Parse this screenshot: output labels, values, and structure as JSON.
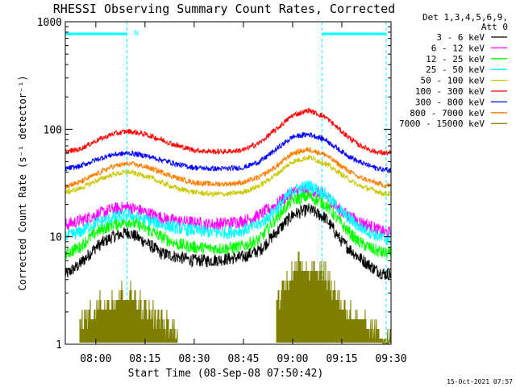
{
  "chart_data": {
    "type": "line",
    "title": "RHESSI Observing Summary Count Rates, Corrected",
    "xlabel": "Start Time (08-Sep-08 07:50:42)",
    "ylabel": "Corrected Count Rate (s⁻¹ detector⁻¹)",
    "yscale": "log",
    "ylim": [
      1,
      1000
    ],
    "xlim": [
      "07:50:42",
      "09:30:00"
    ],
    "x_ticks": [
      "08:00",
      "08:15",
      "08:30",
      "08:45",
      "09:00",
      "09:15",
      "09:30"
    ],
    "y_ticks": [
      "1",
      "10",
      "100",
      "1000"
    ],
    "grid": false,
    "legend_position": "right",
    "legend_header": [
      "Det 1,3,4,5,6,9,",
      "Att 0"
    ],
    "timestamp": "15-Oct-2021 07:57",
    "night_marker": "N",
    "annotation_lines": [
      "07:50:42",
      "08:09:30",
      "09:09:00",
      "09:28:30"
    ],
    "marker_bars": [
      [
        "07:50:42",
        "08:09:30"
      ],
      [
        "09:09:00",
        "09:28:30"
      ]
    ],
    "x": [
      "07:51",
      "07:55",
      "08:00",
      "08:05",
      "08:10",
      "08:15",
      "08:20",
      "08:25",
      "08:30",
      "08:35",
      "08:40",
      "08:45",
      "08:50",
      "08:55",
      "09:00",
      "09:05",
      "09:10",
      "09:15",
      "09:20",
      "09:25",
      "09:28"
    ],
    "series": [
      {
        "name": "3 - 6 keV",
        "color": "#000000",
        "values": [
          4.5,
          5.5,
          8,
          10,
          11,
          9,
          7,
          6.5,
          6,
          6,
          6.2,
          6.5,
          7.5,
          11,
          16,
          18,
          15,
          9,
          6.5,
          5,
          4.5
        ]
      },
      {
        "name": "6 - 12 keV",
        "color": "#ff00ff",
        "values": [
          13,
          14,
          16,
          18,
          19,
          17,
          15,
          14,
          13.5,
          13,
          13.5,
          14,
          16,
          20,
          26,
          28,
          24,
          17,
          14,
          12,
          11
        ]
      },
      {
        "name": "12 - 25 keV",
        "color": "#00ff00",
        "values": [
          7,
          8,
          11,
          13,
          14,
          12,
          10,
          8.5,
          8,
          7.8,
          7.8,
          8.2,
          9.5,
          15,
          22,
          24,
          20,
          13,
          9,
          7.5,
          7
        ]
      },
      {
        "name": "25 - 50 keV",
        "color": "#00ffff",
        "values": [
          10,
          11,
          13.5,
          15,
          16,
          14.5,
          13,
          12,
          11.5,
          11,
          11,
          11.5,
          13,
          18,
          27,
          30,
          25,
          17,
          12.5,
          10.5,
          9.5
        ]
      },
      {
        "name": "50 - 100 keV",
        "color": "#c8c800",
        "values": [
          26,
          28,
          33,
          38,
          40,
          37,
          32,
          28,
          26,
          25,
          25,
          26,
          30,
          38,
          50,
          55,
          48,
          38,
          30,
          27,
          25
        ]
      },
      {
        "name": "100 - 300 keV",
        "color": "#ff0000",
        "values": [
          62,
          65,
          78,
          90,
          96,
          90,
          80,
          70,
          64,
          62,
          62,
          64,
          75,
          100,
          135,
          150,
          130,
          95,
          72,
          62,
          60
        ]
      },
      {
        "name": "300 - 800 keV",
        "color": "#0000ff",
        "values": [
          43,
          45,
          52,
          58,
          60,
          57,
          52,
          47,
          44,
          43,
          43,
          44,
          50,
          65,
          85,
          90,
          80,
          62,
          50,
          44,
          42
        ]
      },
      {
        "name": "800 - 7000 keV",
        "color": "#ff7f00",
        "values": [
          30,
          32,
          38,
          45,
          48,
          45,
          40,
          35,
          32,
          31,
          31,
          32,
          36,
          45,
          60,
          65,
          58,
          45,
          36,
          32,
          30
        ]
      },
      {
        "name": "7000 - 15000 keV",
        "color": "#808000",
        "values": [
          null,
          1.5,
          2.2,
          2.8,
          3.0,
          2.2,
          1.6,
          1.3,
          null,
          null,
          null,
          null,
          null,
          2.5,
          5.0,
          5.5,
          4.5,
          2.5,
          1.6,
          1.3,
          1.2
        ]
      }
    ]
  }
}
